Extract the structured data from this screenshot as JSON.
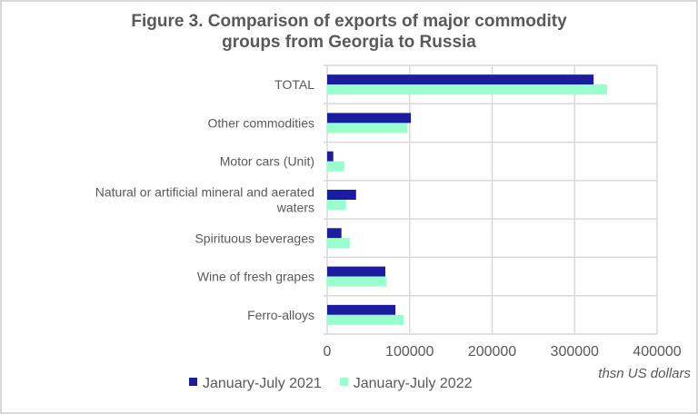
{
  "chart_data": {
    "type": "bar",
    "orientation": "horizontal",
    "title": "Figure 3. Comparison of exports of major commodity groups from Georgia to Russia",
    "title_lines": [
      "Figure 3. Comparison of exports of major commodity",
      "groups from Georgia to Russia"
    ],
    "xlabel": "thsn US dollars",
    "ylabel": "",
    "xlim": [
      0,
      400000
    ],
    "x_ticks": [
      "0",
      "100000",
      "200000",
      "300000",
      "400000"
    ],
    "x_tick_values": [
      0,
      100000,
      200000,
      300000,
      400000
    ],
    "grid": true,
    "legend_position": "bottom",
    "categories": [
      "TOTAL",
      "Other commodities",
      "Motor cars (Unit)",
      "Natural or artificial mineral and aerated waters",
      "Spirituous beverages",
      "Wine of fresh grapes",
      "Ferro-alloys"
    ],
    "category_lines": [
      [
        "TOTAL"
      ],
      [
        "Other commodities"
      ],
      [
        "Motor cars (Unit)"
      ],
      [
        "Natural or artificial mineral and aerated",
        "waters"
      ],
      [
        "Spirituous beverages"
      ],
      [
        "Wine of fresh grapes"
      ],
      [
        "Ferro-alloys"
      ]
    ],
    "series": [
      {
        "name": "January-July 2021",
        "color": "#1c1ca0",
        "values": [
          323000,
          101500,
          7400,
          35000,
          17300,
          70500,
          82700
        ]
      },
      {
        "name": "January-July 2022",
        "color": "#99ffcc",
        "values": [
          339500,
          97400,
          20700,
          22900,
          27300,
          71600,
          93000
        ]
      }
    ]
  }
}
